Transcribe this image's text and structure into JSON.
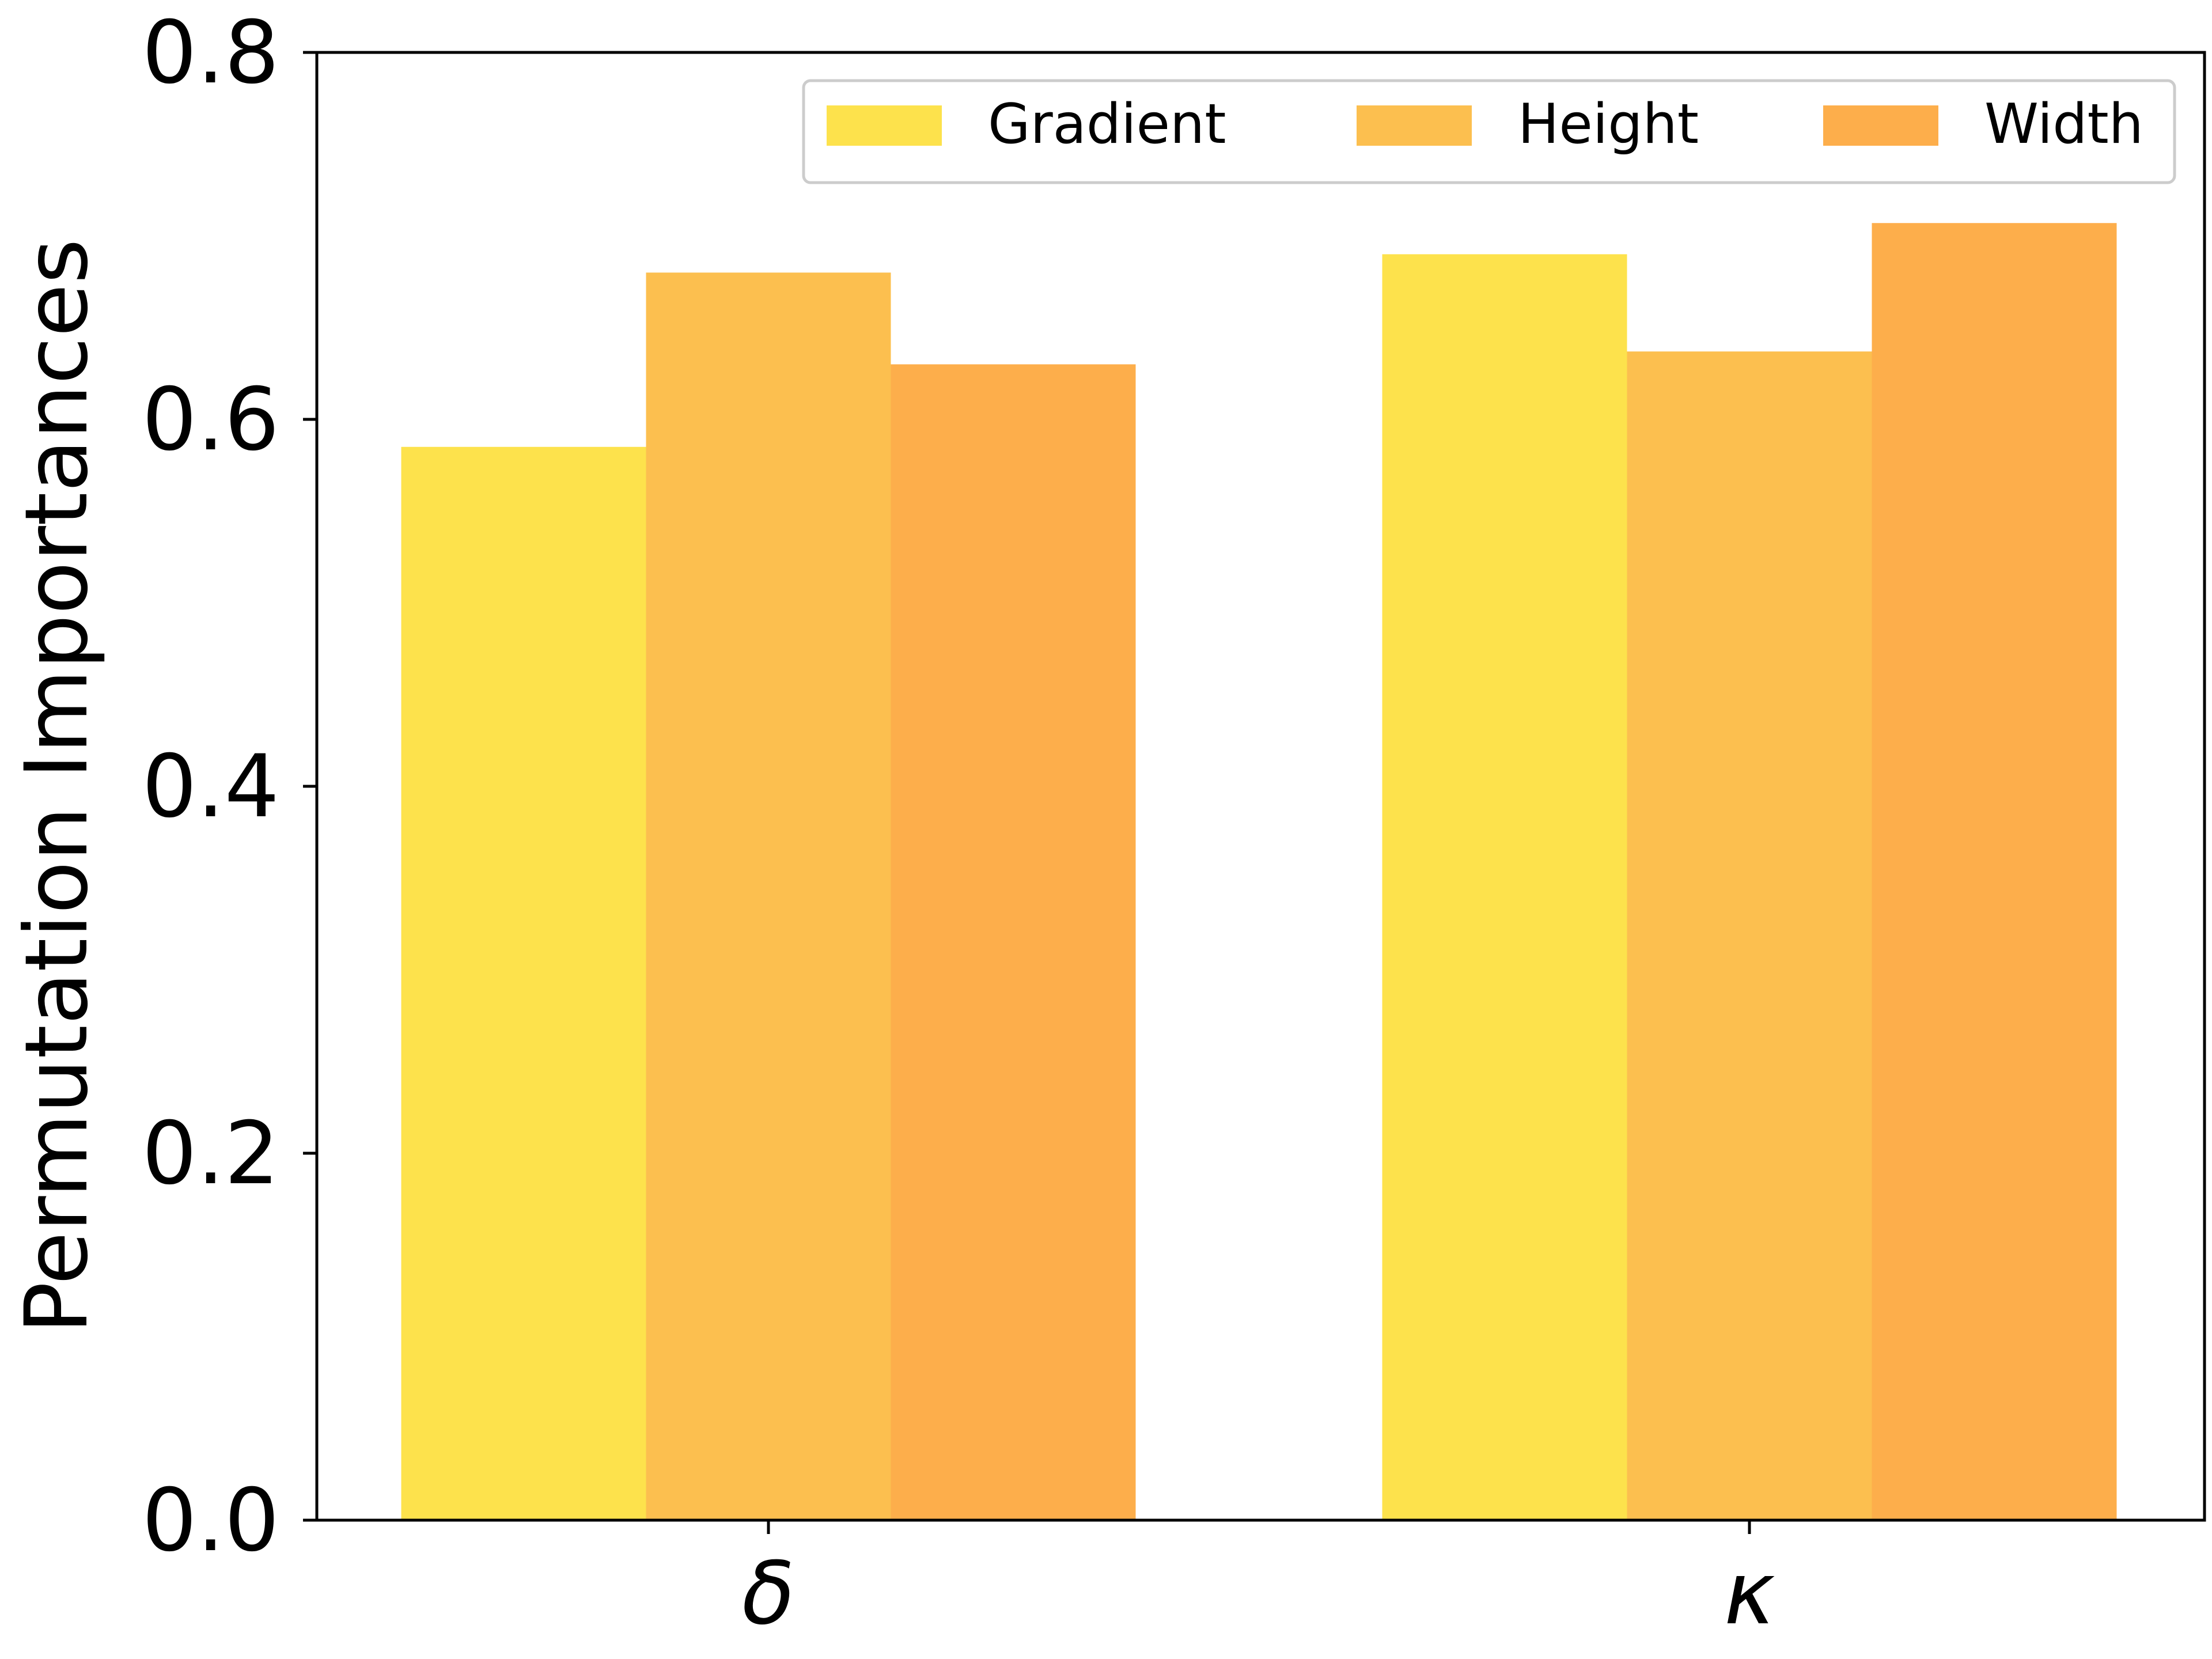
{
  "chart_data": {
    "type": "bar",
    "categories": [
      "δ",
      "κ"
    ],
    "series": [
      {
        "name": "Gradient",
        "values": [
          0.585,
          0.69
        ],
        "color": "#fde24c"
      },
      {
        "name": "Height",
        "values": [
          0.68,
          0.637
        ],
        "color": "#fcbf4f"
      },
      {
        "name": "Width",
        "values": [
          0.63,
          0.707
        ],
        "color": "#fdae4b"
      }
    ],
    "title": "",
    "xlabel": "",
    "ylabel": "Permutation Importances",
    "ylim": [
      0,
      0.8
    ],
    "yticks": [
      "0.0",
      "0.2",
      "0.4",
      "0.6",
      "0.8"
    ],
    "grid": false,
    "legend": "top-right, horizontal"
  }
}
